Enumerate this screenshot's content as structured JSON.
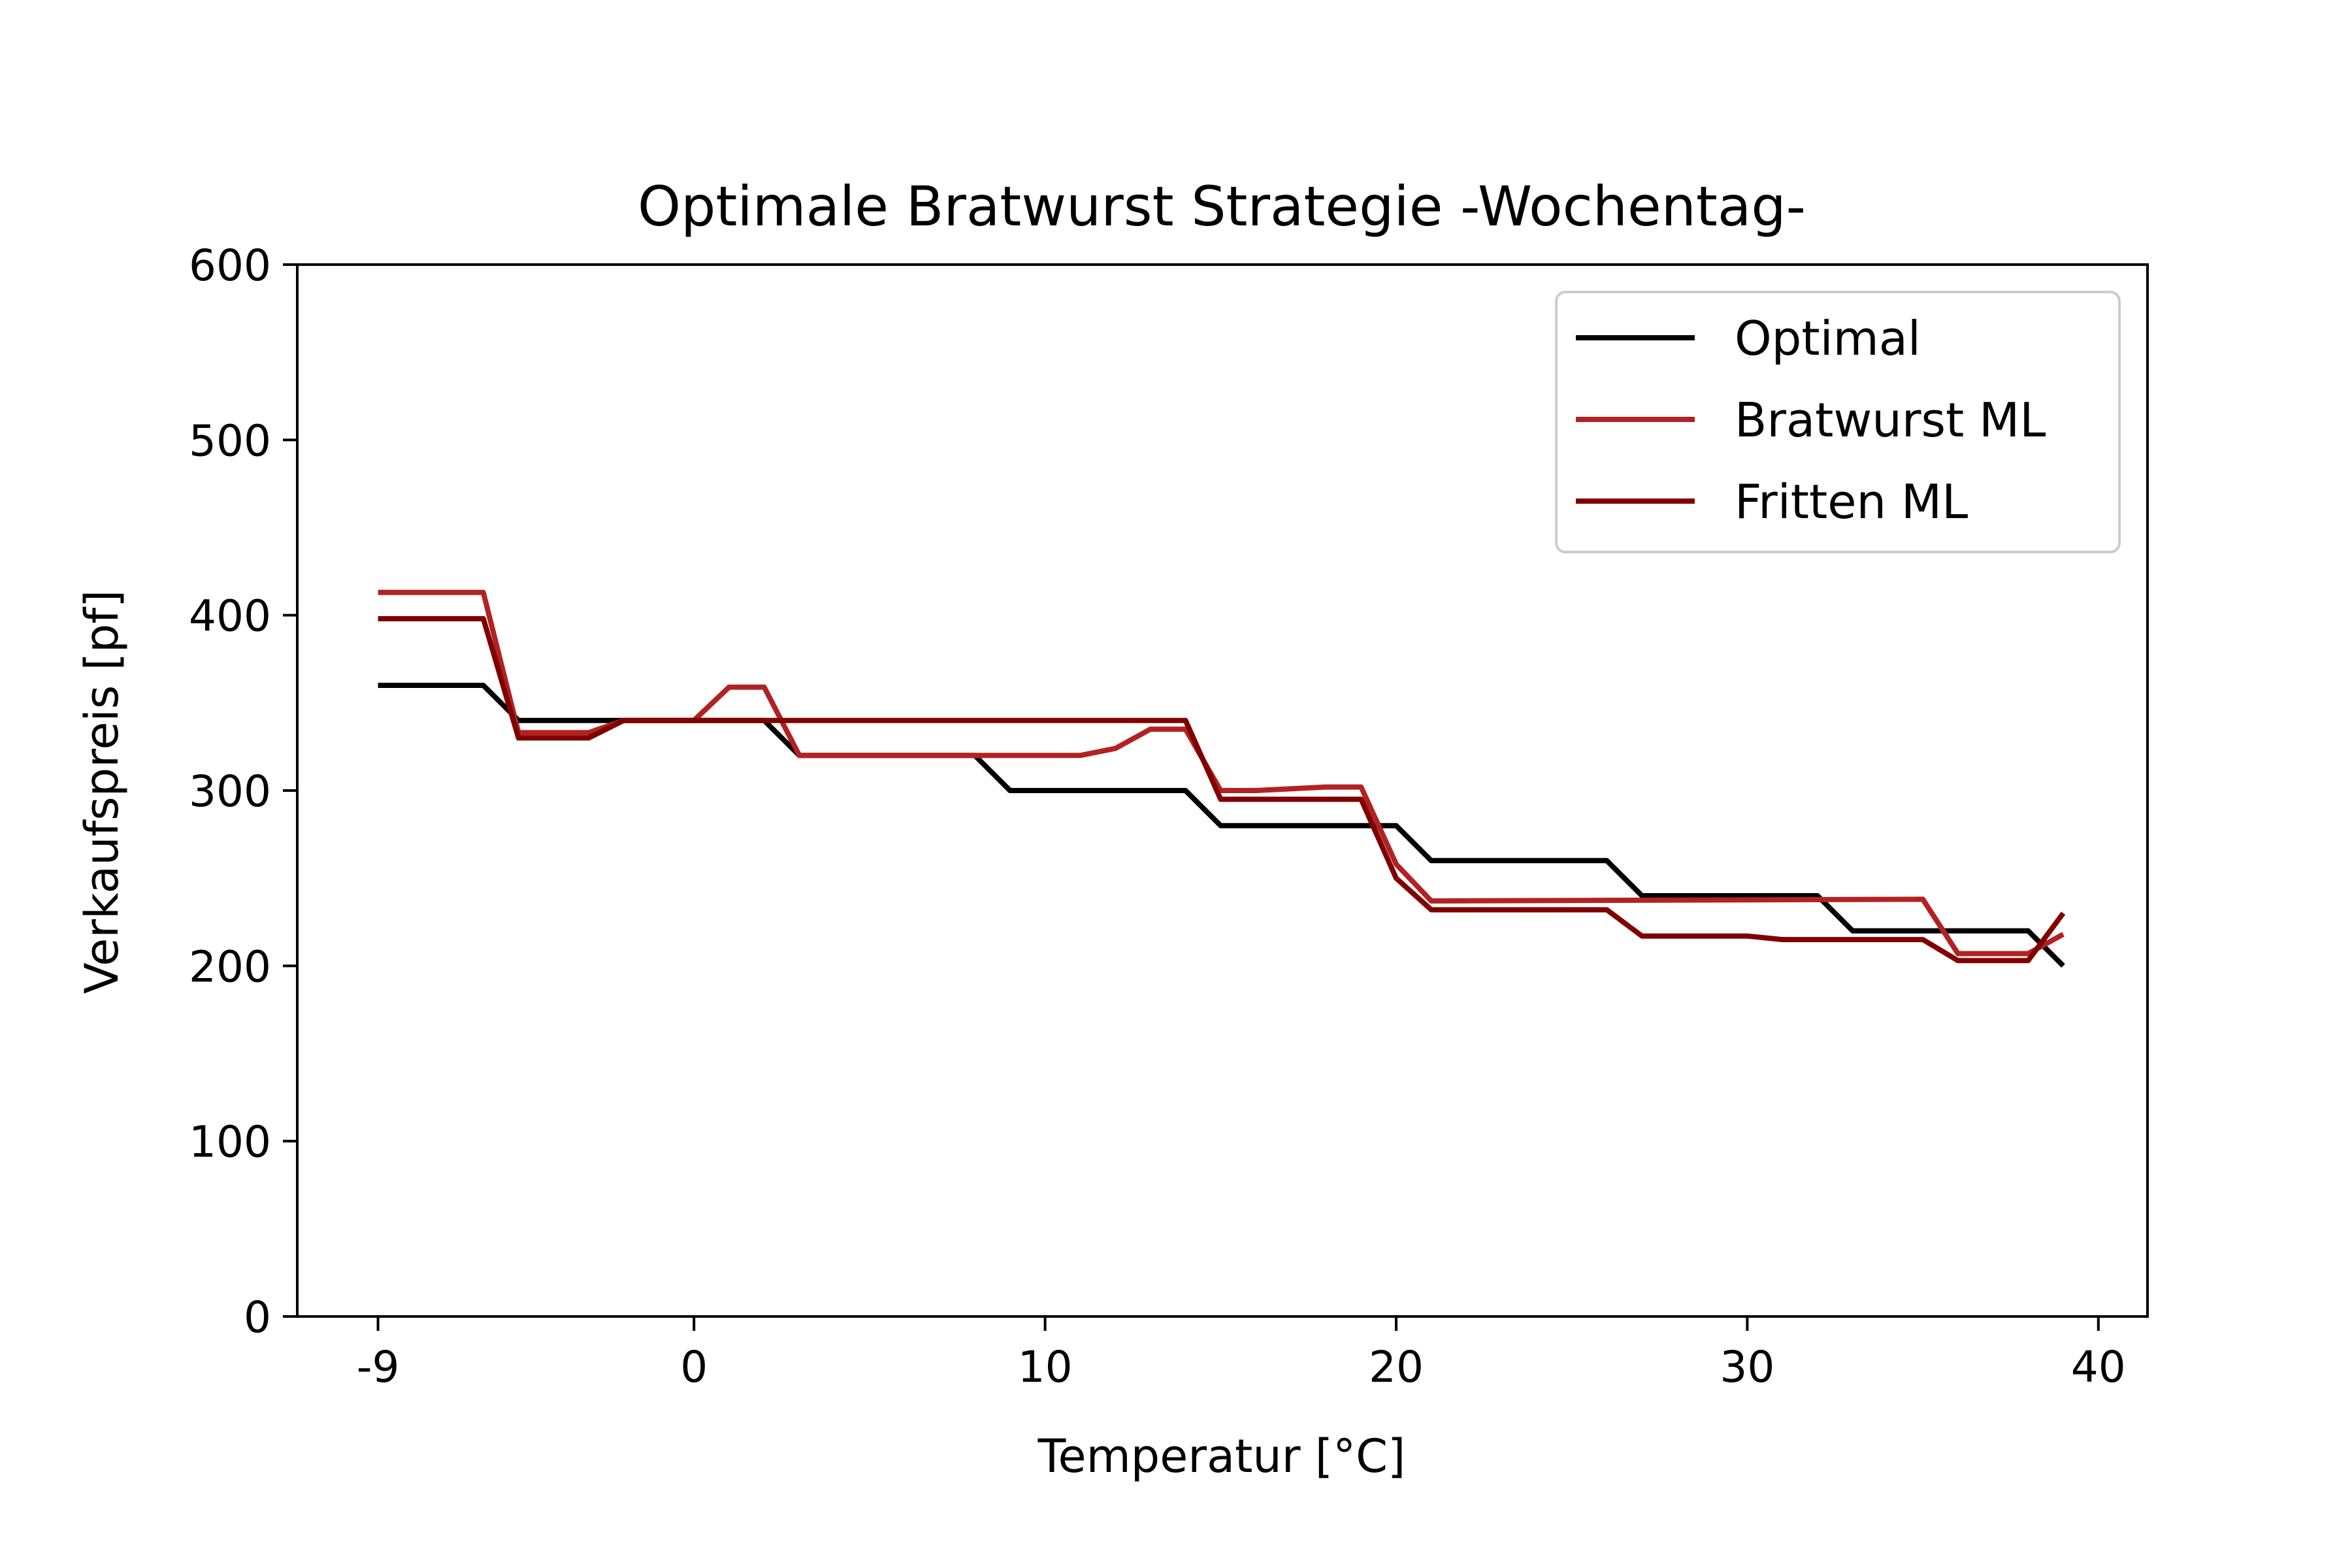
{
  "chart_data": {
    "type": "line",
    "title": "Optimale Bratwurst Strategie -Wochentag-",
    "xlabel": "Temperatur [°C]",
    "ylabel": "Verkaufspreis [pf]",
    "xlim": [
      -11.3,
      41.4
    ],
    "ylim": [
      0,
      600
    ],
    "xticks": [
      -9,
      0,
      10,
      20,
      30,
      40
    ],
    "xtick_labels": [
      "-9",
      "0",
      "10",
      "20",
      "30",
      "40"
    ],
    "yticks": [
      0,
      100,
      200,
      300,
      400,
      500,
      600
    ],
    "ytick_labels": [
      "0",
      "100",
      "200",
      "300",
      "400",
      "500",
      "600"
    ],
    "grid": false,
    "legend_position": "top-right",
    "series": [
      {
        "name": "Optimal",
        "color": "#000000",
        "x": [
          -9,
          -6,
          -5,
          -3,
          -2,
          2,
          3,
          8,
          9,
          14,
          15,
          20,
          21,
          26,
          27,
          32,
          33,
          38,
          39
        ],
        "y": [
          360,
          360,
          340,
          340,
          340,
          340,
          320,
          320,
          300,
          300,
          280,
          280,
          260,
          260,
          240,
          240,
          220,
          220,
          200
        ]
      },
      {
        "name": "Bratwurst ML",
        "color": "#b22222",
        "x": [
          -9,
          -6,
          -5,
          -3,
          -2,
          0,
          1,
          2,
          3,
          11,
          12,
          13,
          14,
          15,
          16,
          18,
          19,
          20,
          21,
          35,
          36,
          38,
          39
        ],
        "y": [
          413,
          413,
          333,
          333,
          340,
          340,
          359,
          359,
          320,
          320,
          324,
          335,
          335,
          300,
          300,
          302,
          302,
          258,
          237,
          238,
          207,
          207,
          218
        ]
      },
      {
        "name": "Fritten ML",
        "color": "#800000",
        "x": [
          -9,
          -6,
          -5,
          -3,
          -2,
          14,
          15,
          19,
          20,
          21,
          26,
          27,
          30,
          31,
          35,
          36,
          38,
          39
        ],
        "y": [
          398,
          398,
          330,
          330,
          340,
          340,
          295,
          295,
          250,
          232,
          232,
          217,
          217,
          215,
          215,
          203,
          203,
          230
        ]
      }
    ]
  }
}
